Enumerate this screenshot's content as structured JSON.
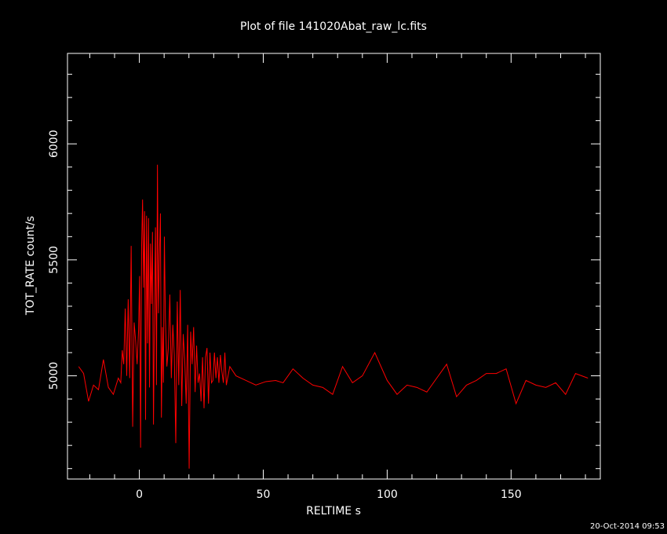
{
  "chart_data": {
    "type": "line",
    "title": "Plot of file 141020Abat_raw_lc.fits",
    "xlabel": "RELTIME  s",
    "ylabel": "TOT_RATE  count/s",
    "xlim": [
      -29,
      186
    ],
    "ylim": [
      4555,
      6390
    ],
    "x_ticks": [
      0,
      50,
      100,
      150
    ],
    "y_ticks": [
      5000,
      5500,
      6000
    ],
    "x_minor_step": 10,
    "y_minor_step": 100,
    "grid": false,
    "legend": "none",
    "colors": {
      "background": "#000000",
      "axes": "#ffffff",
      "series": "#ff0000"
    },
    "series": [
      {
        "x": [
          -24.5,
          -22.5,
          -20.5,
          -18.5,
          -16.5,
          -14.5,
          -12.5,
          -10.5,
          -8.5,
          -7.5,
          -6.9,
          -6.3,
          -5.7,
          -5.1,
          -4.5,
          -3.9,
          -3.3,
          -2.7,
          -2.1,
          -1.5,
          -0.9,
          -0.3,
          0.1,
          0.5,
          0.9,
          1.3,
          1.7,
          2.1,
          2.5,
          2.9,
          3.3,
          3.7,
          4.1,
          4.5,
          4.9,
          5.3,
          5.7,
          6.1,
          6.5,
          6.9,
          7.3,
          7.7,
          8.1,
          8.5,
          8.9,
          9.3,
          9.7,
          10.1,
          10.5,
          11.1,
          11.7,
          12.3,
          12.9,
          13.5,
          14.1,
          14.7,
          15.3,
          15.9,
          16.5,
          17.1,
          17.7,
          18.3,
          18.9,
          19.5,
          20.1,
          20.7,
          21.3,
          21.9,
          22.5,
          23.1,
          23.7,
          24.3,
          24.9,
          25.5,
          26.1,
          26.7,
          27.3,
          27.9,
          28.5,
          29.1,
          29.7,
          30.3,
          30.9,
          31.5,
          32.1,
          32.7,
          33.3,
          33.9,
          34.5,
          35.1,
          36.5,
          39,
          43,
          47,
          51,
          55,
          58,
          62,
          66,
          70,
          74,
          78,
          82,
          86,
          90,
          95,
          100,
          104,
          108,
          112,
          116,
          120,
          124,
          128,
          132,
          136,
          140,
          144,
          148,
          152,
          156,
          160,
          164,
          168,
          172,
          176,
          181
        ],
        "y": [
          5040,
          5010,
          4890,
          4960,
          4940,
          5070,
          4950,
          4920,
          4990,
          4970,
          5110,
          5050,
          5290,
          5000,
          5330,
          4990,
          5560,
          4780,
          5230,
          5150,
          5050,
          5200,
          5430,
          4690,
          5550,
          5760,
          5380,
          5710,
          4810,
          5690,
          5140,
          5680,
          4950,
          5570,
          5310,
          5620,
          4790,
          5280,
          5640,
          4960,
          5910,
          5270,
          5520,
          5700,
          4820,
          5210,
          4970,
          5600,
          5250,
          5040,
          5120,
          5350,
          4990,
          5220,
          5090,
          4710,
          5320,
          4960,
          5370,
          4870,
          5180,
          5070,
          4880,
          5220,
          4600,
          5190,
          5050,
          5210,
          4930,
          5130,
          4970,
          5010,
          4890,
          5080,
          4860,
          5080,
          5120,
          4880,
          5100,
          4970,
          4980,
          5100,
          4990,
          5080,
          4970,
          5090,
          5020,
          4970,
          5100,
          4960,
          5040,
          5000,
          4980,
          4960,
          4975,
          4980,
          4970,
          5030,
          4990,
          4960,
          4950,
          4920,
          5040,
          4970,
          5000,
          5100,
          4980,
          4920,
          4960,
          4950,
          4930,
          4990,
          5050,
          4910,
          4960,
          4980,
          5010,
          5010,
          5030,
          4880,
          4980,
          4960,
          4950,
          4970,
          4920,
          5010,
          4990
        ]
      }
    ]
  },
  "timestamp": "20-Oct-2014 09:53"
}
